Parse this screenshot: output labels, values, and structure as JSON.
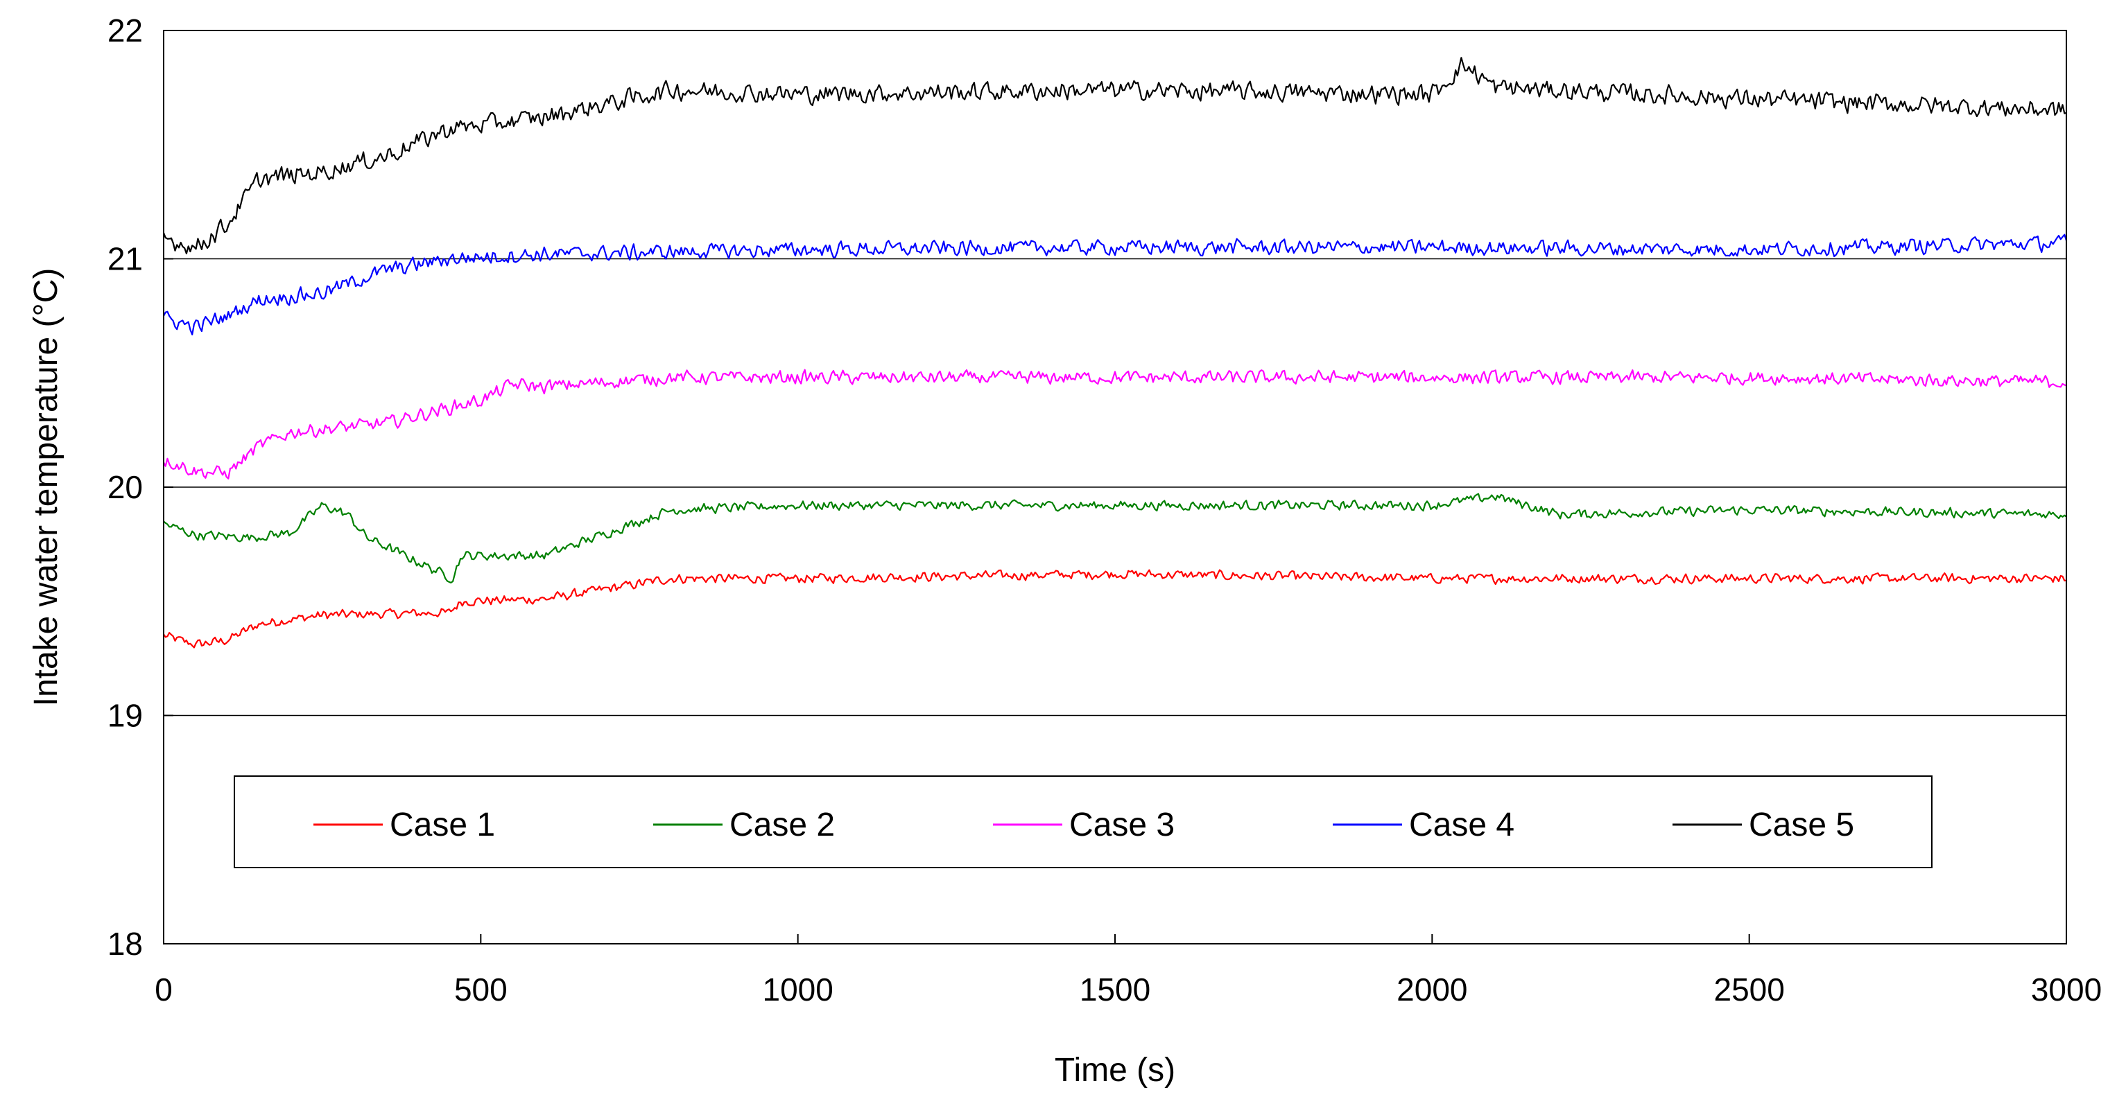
{
  "chart_data": {
    "type": "line",
    "title": "",
    "xlabel": "Time (s)",
    "ylabel": "Intake water temperature (°C)",
    "xlim": [
      0,
      3000
    ],
    "ylim": [
      18,
      22
    ],
    "xticks": [
      "0",
      "500",
      "1000",
      "1500",
      "2000",
      "2500",
      "3000"
    ],
    "yticks": [
      "18",
      "19",
      "20",
      "21",
      "22"
    ],
    "gridlines_y": [
      19,
      20,
      21
    ],
    "legend_position": "lower-center inside plot",
    "noise_amplitude": 0.09,
    "series": [
      {
        "name": "Case 1",
        "color": "#ff0000",
        "noise": 0.025,
        "points": [
          [
            0,
            19.35
          ],
          [
            50,
            19.31
          ],
          [
            100,
            19.33
          ],
          [
            150,
            19.4
          ],
          [
            250,
            19.44
          ],
          [
            450,
            19.45
          ],
          [
            470,
            19.5
          ],
          [
            600,
            19.51
          ],
          [
            800,
            19.6
          ],
          [
            1000,
            19.6
          ],
          [
            1500,
            19.62
          ],
          [
            2000,
            19.6
          ],
          [
            2500,
            19.6
          ],
          [
            3000,
            19.6
          ]
        ]
      },
      {
        "name": "Case 2",
        "color": "#008000",
        "noise": 0.025,
        "points": [
          [
            0,
            19.84
          ],
          [
            50,
            19.79
          ],
          [
            140,
            19.78
          ],
          [
            200,
            19.8
          ],
          [
            250,
            19.92
          ],
          [
            290,
            19.88
          ],
          [
            320,
            19.78
          ],
          [
            440,
            19.62
          ],
          [
            455,
            19.6
          ],
          [
            470,
            19.7
          ],
          [
            600,
            19.7
          ],
          [
            800,
            19.9
          ],
          [
            1000,
            19.92
          ],
          [
            1500,
            19.92
          ],
          [
            2000,
            19.92
          ],
          [
            2100,
            19.96
          ],
          [
            2200,
            19.88
          ],
          [
            2500,
            19.9
          ],
          [
            3000,
            19.88
          ]
        ]
      },
      {
        "name": "Case 3",
        "color": "#ff00ff",
        "noise": 0.035,
        "points": [
          [
            0,
            20.12
          ],
          [
            50,
            20.07
          ],
          [
            100,
            20.06
          ],
          [
            150,
            20.18
          ],
          [
            200,
            20.24
          ],
          [
            350,
            20.28
          ],
          [
            500,
            20.38
          ],
          [
            550,
            20.45
          ],
          [
            600,
            20.44
          ],
          [
            800,
            20.48
          ],
          [
            1000,
            20.48
          ],
          [
            1500,
            20.48
          ],
          [
            2000,
            20.48
          ],
          [
            2500,
            20.48
          ],
          [
            3000,
            20.46
          ]
        ]
      },
      {
        "name": "Case 4",
        "color": "#0000ff",
        "noise": 0.04,
        "points": [
          [
            0,
            20.74
          ],
          [
            50,
            20.7
          ],
          [
            100,
            20.75
          ],
          [
            150,
            20.82
          ],
          [
            250,
            20.85
          ],
          [
            350,
            20.95
          ],
          [
            450,
            21.0
          ],
          [
            600,
            21.02
          ],
          [
            800,
            21.03
          ],
          [
            1000,
            21.04
          ],
          [
            1500,
            21.05
          ],
          [
            2000,
            21.05
          ],
          [
            2500,
            21.04
          ],
          [
            3000,
            21.07
          ]
        ]
      },
      {
        "name": "Case 5",
        "color": "#000000",
        "noise": 0.05,
        "points": [
          [
            0,
            21.09
          ],
          [
            50,
            21.05
          ],
          [
            100,
            21.15
          ],
          [
            150,
            21.35
          ],
          [
            250,
            21.38
          ],
          [
            350,
            21.45
          ],
          [
            450,
            21.57
          ],
          [
            600,
            21.62
          ],
          [
            800,
            21.74
          ],
          [
            1000,
            21.72
          ],
          [
            1500,
            21.74
          ],
          [
            2000,
            21.72
          ],
          [
            2050,
            21.85
          ],
          [
            2100,
            21.75
          ],
          [
            2500,
            21.7
          ],
          [
            3000,
            21.65
          ]
        ]
      }
    ]
  }
}
